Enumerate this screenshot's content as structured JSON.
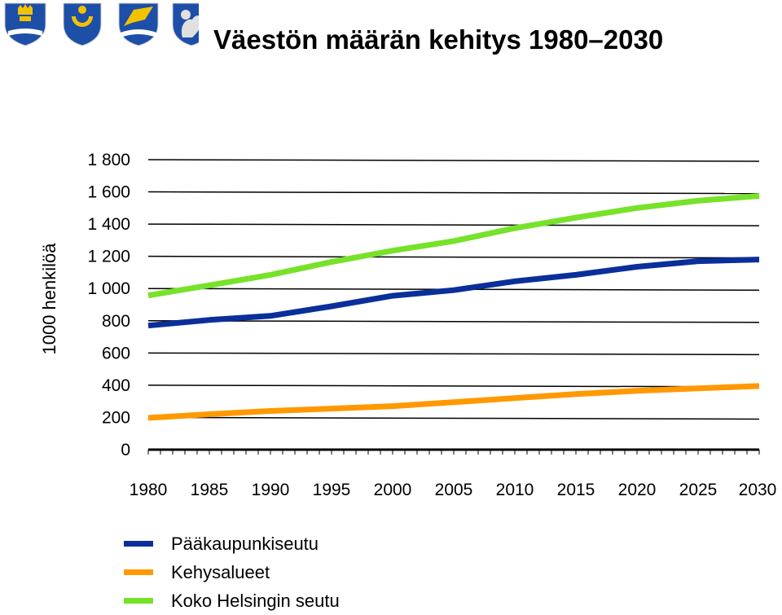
{
  "title": "Väestön määrän kehitys 1980–2030",
  "crests": [
    "helsinki-crest-icon",
    "vantaa-crest-icon",
    "espoo-crest-icon",
    "kauniainen-crest-icon"
  ],
  "chart_data": {
    "type": "line",
    "title": "Väestön määrän kehitys 1980–2030",
    "xlabel": "",
    "ylabel": "1000 henkilöä",
    "xlim": [
      1980,
      2030
    ],
    "ylim": [
      0,
      1800
    ],
    "x_ticks": [
      1980,
      1985,
      1990,
      1995,
      2000,
      2005,
      2010,
      2015,
      2020,
      2025,
      2030
    ],
    "y_ticks": [
      0,
      200,
      400,
      600,
      800,
      1000,
      1200,
      1400,
      1600,
      1800
    ],
    "y_tick_labels": [
      "0",
      "200",
      "400",
      "600",
      "800",
      "1 000",
      "1 200",
      "1 400",
      "1 600",
      "1 800"
    ],
    "grid": "horizontal",
    "legend_position": "bottom-left",
    "series": [
      {
        "name": "Pääkaupunkiseutu",
        "color": "#0a2f9a",
        "x": [
          1980,
          1985,
          1990,
          1995,
          2000,
          2005,
          2010,
          2015,
          2020,
          2025,
          2030
        ],
        "values": [
          770,
          805,
          830,
          890,
          955,
          990,
          1045,
          1085,
          1135,
          1170,
          1180
        ]
      },
      {
        "name": "Kehysalueet",
        "color": "#ff9900",
        "x": [
          1980,
          1985,
          1990,
          1995,
          2000,
          2005,
          2010,
          2015,
          2020,
          2025,
          2030
        ],
        "values": [
          197,
          220,
          240,
          255,
          270,
          295,
          320,
          345,
          365,
          380,
          395
        ]
      },
      {
        "name": "Koko Helsingin seutu",
        "color": "#77e22a",
        "x": [
          1980,
          1985,
          1990,
          1995,
          2000,
          2005,
          2010,
          2015,
          2020,
          2025,
          2030
        ],
        "values": [
          957,
          1020,
          1085,
          1165,
          1235,
          1295,
          1375,
          1440,
          1500,
          1545,
          1575
        ]
      }
    ]
  }
}
